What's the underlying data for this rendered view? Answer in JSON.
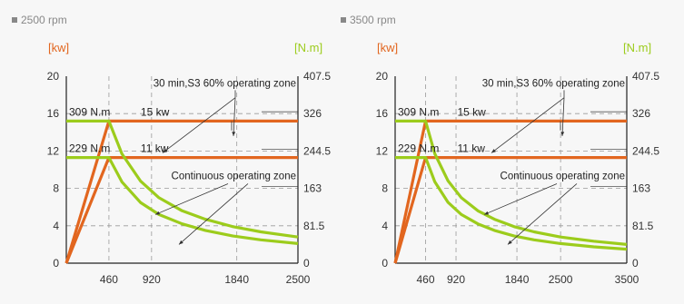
{
  "colors": {
    "power": "#e2661f",
    "torque": "#9ccc1c",
    "axis": "#222222",
    "grid": "#9a9a9a",
    "background": "#f7f7f7",
    "panel_header": "#888888"
  },
  "chart_data": [
    {
      "type": "line",
      "title": "2500 rpm",
      "y_left_label": "[kw]",
      "y_right_label": "[N.m]",
      "xlim": [
        0,
        2500
      ],
      "ylim_left": [
        0,
        20
      ],
      "ylim_right": [
        0,
        407.5
      ],
      "x_ticks": [
        "460",
        "920",
        "1840",
        "2500"
      ],
      "y_left_ticks": [
        "0",
        "4",
        "8",
        "12",
        "16",
        "20"
      ],
      "y_right_ticks": [
        "0",
        "81.5",
        "163",
        "244.5",
        "326",
        "407.5"
      ],
      "grid": true,
      "series": [
        {
          "name": "15 kw",
          "color": "orange",
          "x": [
            0,
            460,
            2500
          ],
          "y": [
            0,
            15.2,
            15.2
          ]
        },
        {
          "name": "11 kw",
          "color": "orange",
          "x": [
            0,
            460,
            2500
          ],
          "y": [
            0,
            11.3,
            11.3
          ]
        },
        {
          "name": "309 N.m",
          "color": "green",
          "x": [
            0,
            460,
            600,
            800,
            1000,
            1250,
            1500,
            1800,
            2100,
            2500
          ],
          "y": [
            15.2,
            15.2,
            11.7,
            8.8,
            7.0,
            5.6,
            4.7,
            3.9,
            3.35,
            2.8
          ]
        },
        {
          "name": "229 N.m",
          "color": "green",
          "x": [
            0,
            460,
            600,
            800,
            1000,
            1250,
            1500,
            1800,
            2100,
            2500
          ],
          "y": [
            11.3,
            11.3,
            8.7,
            6.5,
            5.2,
            4.2,
            3.5,
            2.9,
            2.5,
            2.1
          ]
        }
      ],
      "labels": {
        "torque_s3": "309 N.m",
        "torque_cont": "229 N.m",
        "power_s3": "15 kw",
        "power_cont": "11 kw",
        "zone_s3": "30 min,S3 60% operating zone",
        "zone_cont": "Continuous operating zone"
      }
    },
    {
      "type": "line",
      "title": "3500 rpm",
      "y_left_label": "[kw]",
      "y_right_label": "[N.m]",
      "xlim": [
        0,
        3500
      ],
      "ylim_left": [
        0,
        20
      ],
      "ylim_right": [
        0,
        407.5
      ],
      "x_ticks": [
        "460",
        "920",
        "1840",
        "2500",
        "3500"
      ],
      "y_left_ticks": [
        "0",
        "4",
        "8",
        "12",
        "16",
        "20"
      ],
      "y_right_ticks": [
        "0",
        "81.5",
        "163",
        "244.5",
        "326",
        "407.5"
      ],
      "grid": true,
      "series": [
        {
          "name": "15 kw",
          "color": "orange",
          "x": [
            0,
            460,
            3500
          ],
          "y": [
            0,
            15.2,
            15.2
          ]
        },
        {
          "name": "11 kw",
          "color": "orange",
          "x": [
            0,
            460,
            3500
          ],
          "y": [
            0,
            11.3,
            11.3
          ]
        },
        {
          "name": "309 N.m",
          "color": "green",
          "x": [
            0,
            460,
            600,
            800,
            1000,
            1250,
            1500,
            1800,
            2100,
            2500,
            3000,
            3500
          ],
          "y": [
            15.2,
            15.2,
            11.7,
            8.8,
            7.0,
            5.6,
            4.7,
            3.9,
            3.35,
            2.8,
            2.35,
            2.0
          ]
        },
        {
          "name": "229 N.m",
          "color": "green",
          "x": [
            0,
            460,
            600,
            800,
            1000,
            1250,
            1500,
            1800,
            2100,
            2500,
            3000,
            3500
          ],
          "y": [
            11.3,
            11.3,
            8.7,
            6.5,
            5.2,
            4.2,
            3.5,
            2.9,
            2.5,
            2.1,
            1.75,
            1.5
          ]
        }
      ],
      "labels": {
        "torque_s3": "309 N.m",
        "torque_cont": "229 N.m",
        "power_s3": "15 kw",
        "power_cont": "11 kw",
        "zone_s3": "30 min,S3 60% operating zone",
        "zone_cont": "Continuous operating zone"
      }
    }
  ]
}
